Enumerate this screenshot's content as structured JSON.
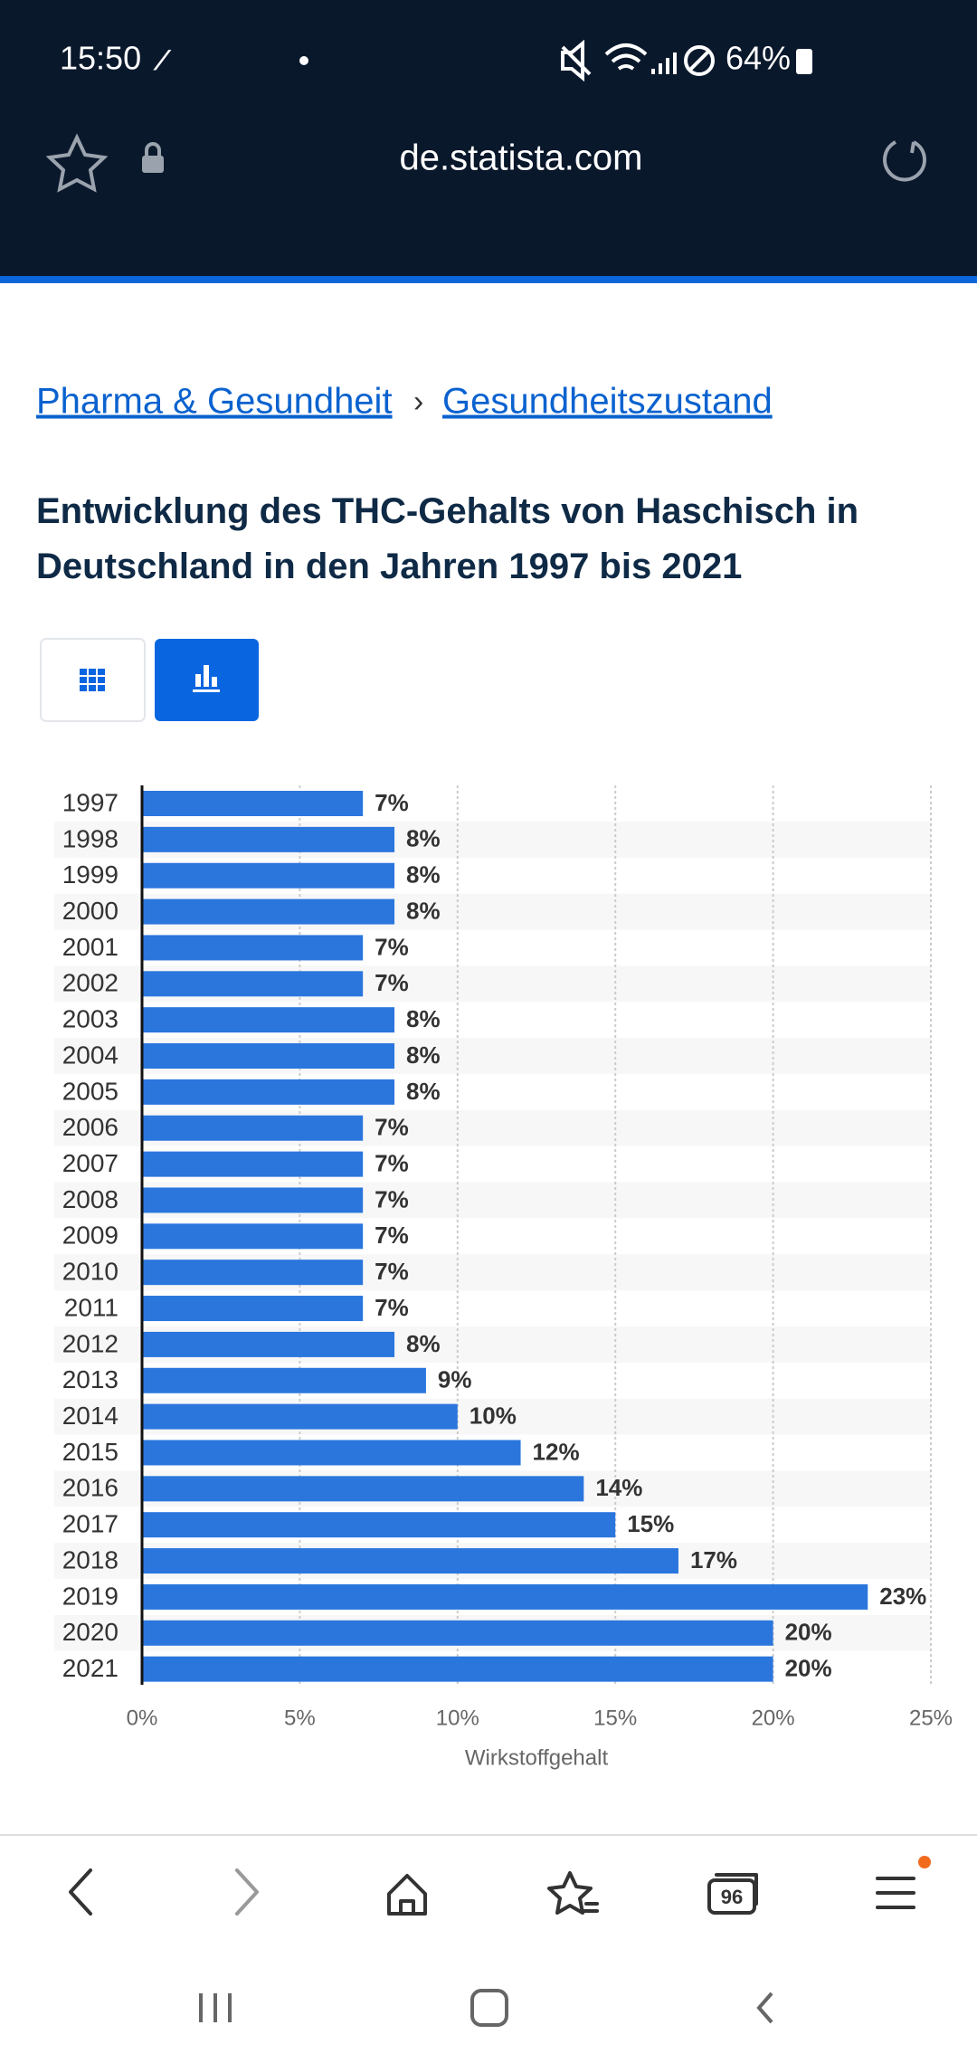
{
  "status_bar": {
    "time": "15:50",
    "battery": "64%"
  },
  "browser": {
    "url": "de.statista.com",
    "tab_count": "96"
  },
  "breadcrumbs": {
    "items": [
      "Pharma & Gesundheit",
      "Gesundheitszustand"
    ],
    "separator": "›"
  },
  "chart_data": {
    "type": "bar",
    "orientation": "horizontal",
    "title": "Entwicklung des THC-Gehalts von Haschisch in Deutschland in den Jahren 1997 bis 2021",
    "categories": [
      "1997",
      "1998",
      "1999",
      "2000",
      "2001",
      "2002",
      "2003",
      "2004",
      "2005",
      "2006",
      "2007",
      "2008",
      "2009",
      "2010",
      "2011",
      "2012",
      "2013",
      "2014",
      "2015",
      "2016",
      "2017",
      "2018",
      "2019",
      "2020",
      "2021"
    ],
    "values": [
      7,
      8,
      8,
      8,
      7,
      7,
      8,
      8,
      8,
      7,
      7,
      7,
      7,
      7,
      7,
      8,
      9,
      10,
      12,
      14,
      15,
      17,
      23,
      20,
      20
    ],
    "value_labels": [
      "7%",
      "8%",
      "8%",
      "8%",
      "7%",
      "7%",
      "8%",
      "8%",
      "8%",
      "7%",
      "7%",
      "7%",
      "7%",
      "7%",
      "7%",
      "8%",
      "9%",
      "10%",
      "12%",
      "14%",
      "15%",
      "17%",
      "23%",
      "20%",
      "20%"
    ],
    "color": "#2a76dd",
    "xlim": [
      0,
      25
    ],
    "xticks": [
      {
        "value": 0,
        "label": "0%"
      },
      {
        "value": 5,
        "label": "5%"
      },
      {
        "value": 10,
        "label": "10%"
      },
      {
        "value": 15,
        "label": "15%"
      },
      {
        "value": 20,
        "label": "20%"
      },
      {
        "value": 25,
        "label": "25%"
      }
    ],
    "x_label": "Wirkstoffgehalt",
    "grid": true
  }
}
